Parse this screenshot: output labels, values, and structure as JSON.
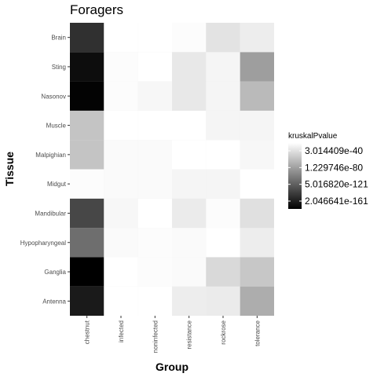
{
  "chart_data": {
    "type": "heatmap",
    "title": "Foragers",
    "xlabel": "Group",
    "ylabel": "Tissue",
    "x_categories": [
      "chestnut",
      "infected",
      "noninfected",
      "resistance",
      "rockrose",
      "tolerance"
    ],
    "y_categories": [
      "Antenna",
      "Ganglia",
      "Hypopharyngeal",
      "Mandibular",
      "Midgut",
      "Malpighian",
      "Muscle",
      "Nasonov",
      "Sting",
      "Brain"
    ],
    "grid": true,
    "legend": {
      "title": "kruskalPvalue",
      "position": "right",
      "labels": [
        "3.014409e-40",
        "1.229746e-80",
        "5.016820e-121",
        "2.046641e-161"
      ],
      "color_low": "#000000",
      "color_high": "#ffffff"
    },
    "cells_shade": [
      [
        0.1,
        1.0,
        1.0,
        0.93,
        0.92,
        0.68
      ],
      [
        0.0,
        1.0,
        0.99,
        0.98,
        0.85,
        0.78
      ],
      [
        0.43,
        0.98,
        0.99,
        0.98,
        1.0,
        0.93
      ],
      [
        0.28,
        0.97,
        1.0,
        0.92,
        0.99,
        0.88
      ],
      [
        0.99,
        0.98,
        0.98,
        0.96,
        0.96,
        1.0
      ],
      [
        0.77,
        0.98,
        0.98,
        1.0,
        1.0,
        0.97
      ],
      [
        0.77,
        1.0,
        1.0,
        1.0,
        0.96,
        0.96
      ],
      [
        0.01,
        0.99,
        0.97,
        0.91,
        0.96,
        0.73
      ],
      [
        0.05,
        0.99,
        1.0,
        0.91,
        0.96,
        0.62
      ],
      [
        0.19,
        1.0,
        1.0,
        0.99,
        0.89,
        0.93
      ]
    ]
  }
}
